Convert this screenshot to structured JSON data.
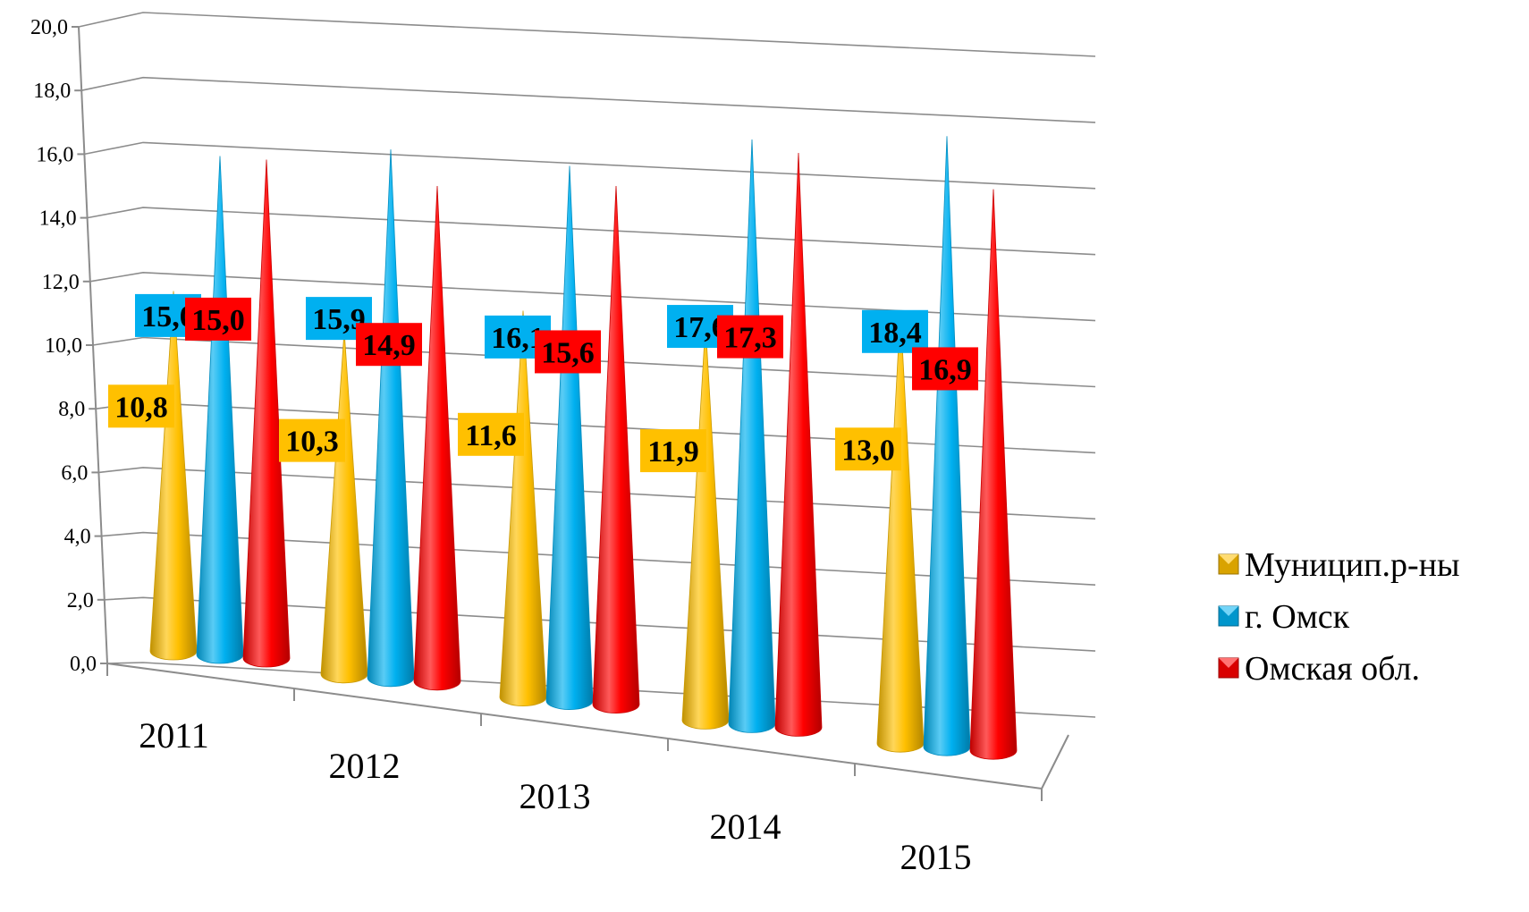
{
  "chart_data": {
    "type": "bar",
    "bar_shape": "cone",
    "categories": [
      "2011",
      "2012",
      "2013",
      "2014",
      "2015"
    ],
    "series": [
      {
        "name": "Муницип.р-ны",
        "color": "#FFC000",
        "values": [
          10.8,
          10.3,
          11.6,
          11.9,
          13.0
        ],
        "labels": [
          "10,8",
          "10,3",
          "11,6",
          "11,9",
          "13,0"
        ]
      },
      {
        "name": "г. Омск",
        "color": "#00B0F0",
        "values": [
          15.0,
          15.9,
          16.1,
          17.6,
          18.4
        ],
        "labels": [
          "15,0",
          "15,9",
          "16,1",
          "17,6",
          "18,4"
        ]
      },
      {
        "name": "Омская обл.",
        "color": "#FF0000",
        "values": [
          15.0,
          14.9,
          15.6,
          17.3,
          16.9
        ],
        "labels": [
          "15,0",
          "14,9",
          "15,6",
          "17,3",
          "16,9"
        ]
      }
    ],
    "y_ticks": [
      "0,0",
      "2,0",
      "4,0",
      "6,0",
      "8,0",
      "10,0",
      "12,0",
      "14,0",
      "16,0",
      "18,0",
      "20,0"
    ],
    "ylim": [
      0,
      20
    ],
    "grid": true,
    "legend_position": "right",
    "title": "",
    "xlabel": "",
    "ylabel": ""
  }
}
